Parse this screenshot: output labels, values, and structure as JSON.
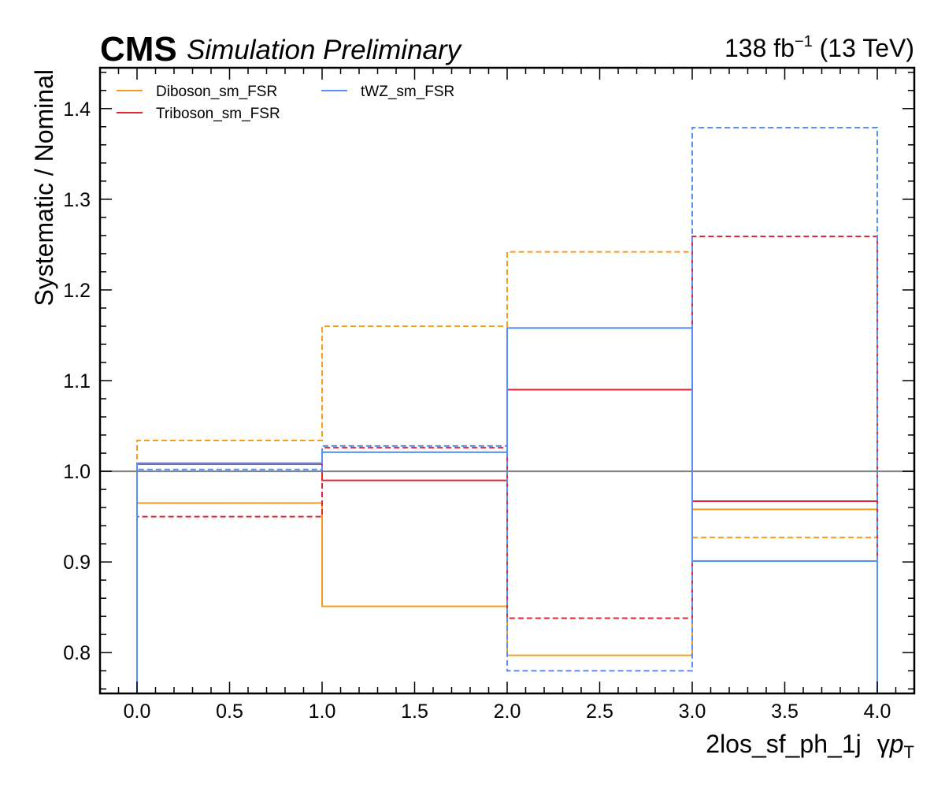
{
  "header": {
    "experiment": "CMS",
    "status": "Simulation Preliminary",
    "lumi_value": "138 fb",
    "lumi_exponent": "−1",
    "energy": " (13 TeV)"
  },
  "colors": {
    "Diboson_sm_FSR": "#f89c20",
    "Triboson_sm_FSR": "#e42536",
    "tWZ_sm_FSR": "#5790fc",
    "nominal_line": "#808080"
  },
  "chart_data": {
    "type": "line",
    "drawstyle": "step",
    "xlabel_main": "2los_sf_ph_1j",
    "xlabel_var": "γ",
    "xlabel_sym": "p",
    "xlabel_sub": "T",
    "ylabel": "Systematic / Nominal",
    "xlim": [
      -0.2,
      4.2
    ],
    "ylim": [
      0.755,
      1.445
    ],
    "xticks": [
      0.0,
      0.5,
      1.0,
      1.5,
      2.0,
      2.5,
      3.0,
      3.5,
      4.0
    ],
    "xtick_labels": [
      "0.0",
      "0.5",
      "1.0",
      "1.5",
      "2.0",
      "2.5",
      "3.0",
      "3.5",
      "4.0"
    ],
    "yticks": [
      0.8,
      0.9,
      1.0,
      1.1,
      1.2,
      1.3,
      1.4
    ],
    "ytick_labels": [
      "0.8",
      "0.9",
      "1.0",
      "1.1",
      "1.2",
      "1.3",
      "1.4"
    ],
    "bin_edges": [
      0,
      1,
      2,
      3,
      4
    ],
    "reference_line": 1.0,
    "legend_position": "top-left",
    "legend_columns": 2,
    "series": [
      {
        "name": "Diboson_sm_FSR",
        "up": [
          0.965,
          0.851,
          0.797,
          0.958
        ],
        "down": [
          1.034,
          1.16,
          1.242,
          0.927
        ]
      },
      {
        "name": "Triboson_sm_FSR",
        "up": [
          1.008,
          0.99,
          1.09,
          0.967
        ],
        "down": [
          0.95,
          1.026,
          0.838,
          1.259
        ]
      },
      {
        "name": "tWZ_sm_FSR",
        "up": [
          1.009,
          1.021,
          1.158,
          0.901
        ],
        "down": [
          1.002,
          1.028,
          0.78,
          1.379
        ]
      }
    ]
  }
}
